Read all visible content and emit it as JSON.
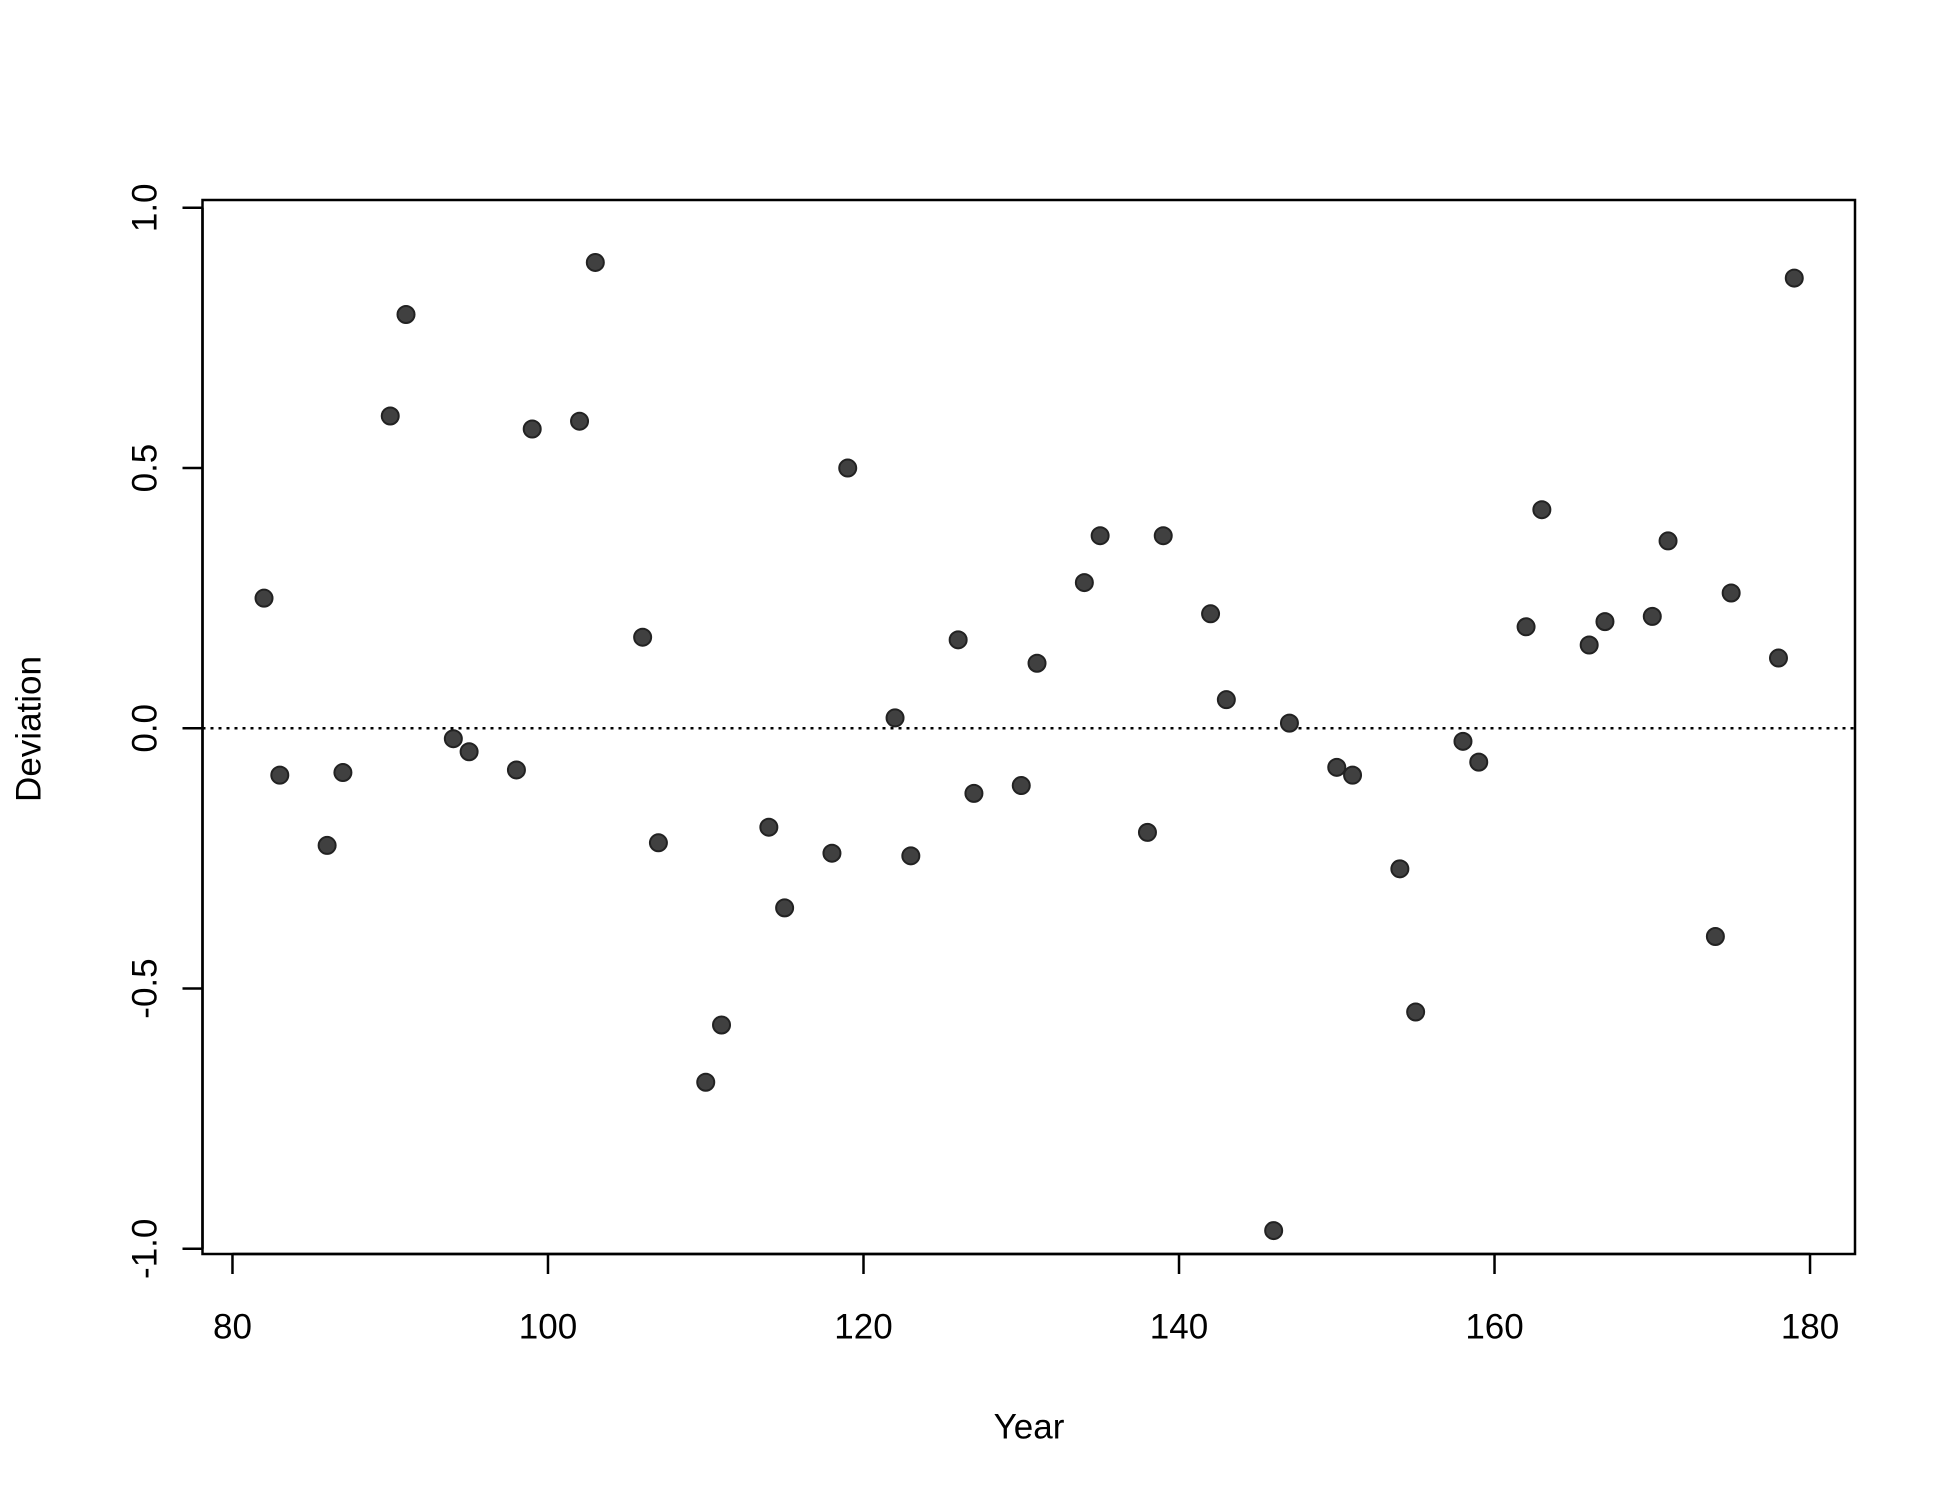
{
  "chart_data": {
    "type": "scatter",
    "x_label": "Year",
    "y_label": "Deviation",
    "x": [
      82,
      83,
      86,
      87,
      90,
      91,
      94,
      95,
      98,
      99,
      102,
      103,
      106,
      107,
      110,
      111,
      114,
      115,
      118,
      119,
      122,
      123,
      126,
      127,
      130,
      131,
      134,
      135,
      138,
      139,
      142,
      143,
      146,
      147,
      150,
      151,
      154,
      155,
      158,
      159,
      162,
      163,
      166,
      167,
      170,
      171,
      174,
      175,
      178,
      179
    ],
    "values": [
      0.25,
      -0.09,
      -0.225,
      -0.085,
      0.6,
      0.795,
      -0.02,
      -0.045,
      -0.08,
      0.575,
      0.59,
      0.895,
      0.175,
      -0.22,
      -0.68,
      -0.57,
      -0.19,
      -0.345,
      -0.24,
      0.5,
      0.02,
      -0.245,
      0.17,
      -0.125,
      -0.11,
      0.125,
      0.28,
      0.37,
      -0.2,
      0.37,
      0.22,
      0.055,
      -0.965,
      0.01,
      -0.075,
      -0.09,
      -0.27,
      -0.545,
      -0.025,
      -0.065,
      0.195,
      0.42,
      0.16,
      0.205,
      0.215,
      0.36,
      -0.4,
      0.26,
      0.135,
      0.865
    ],
    "color": "#404040",
    "xlim": [
      78.1,
      182.85
    ],
    "ylim": [
      -1.01,
      1.015
    ],
    "xticks": [
      80,
      100,
      120,
      140,
      160,
      180
    ],
    "yticks": [
      {
        "value": -1,
        "label": "-1.0"
      },
      {
        "value": -0.5,
        "label": "-0.5"
      },
      {
        "value": 0,
        "label": "0.0"
      },
      {
        "value": 0.5,
        "label": "0.5"
      },
      {
        "value": 1,
        "label": "1.0"
      }
    ],
    "hline": 0,
    "grid": false
  }
}
